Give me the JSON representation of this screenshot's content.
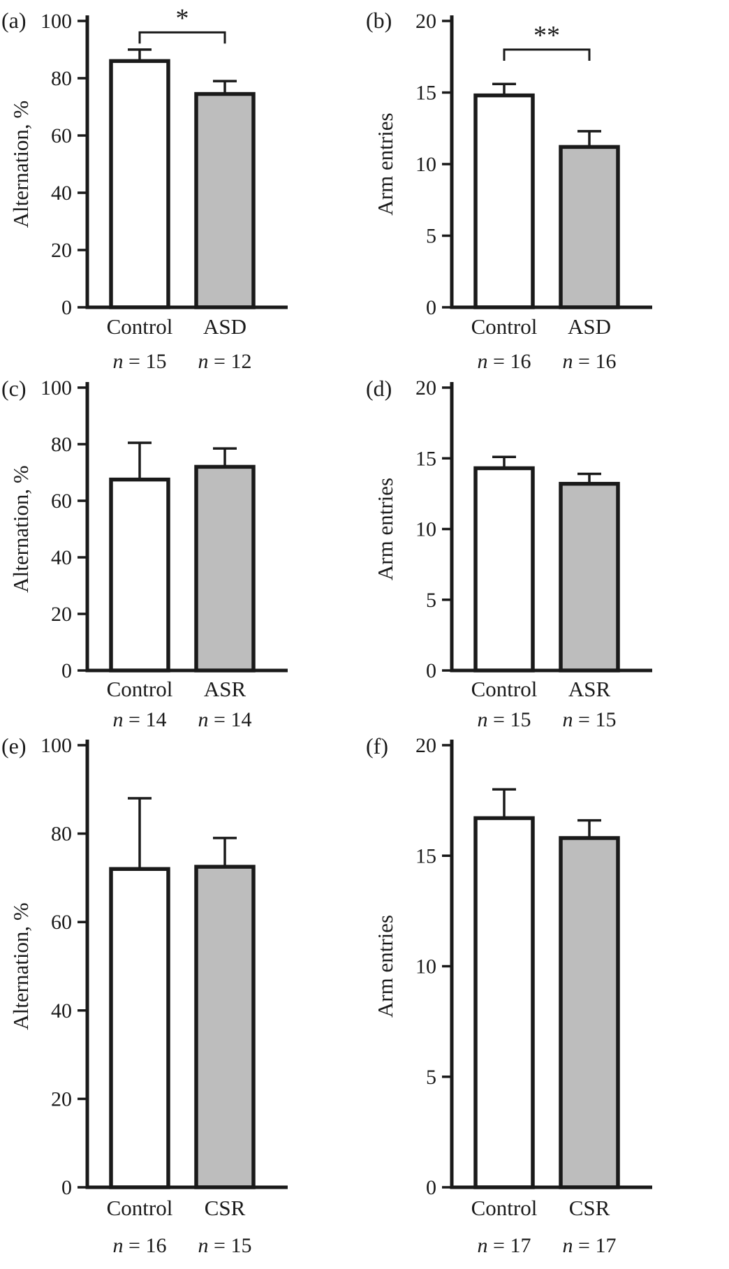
{
  "figure": {
    "background": "#ffffff",
    "axis_color": "#1a1a1a",
    "text_color": "#1a1a1a",
    "control_fill": "#ffffff",
    "treatment_fill": "#bdbdbd"
  },
  "chart_data": [
    {
      "panel": "(a)",
      "type": "bar",
      "ylabel": "Alternation, %",
      "ylim": [
        0,
        100
      ],
      "yticks": [
        0,
        20,
        40,
        60,
        80,
        100
      ],
      "categories": [
        "Control",
        "ASD"
      ],
      "n_labels": [
        "n = 15",
        "n = 12"
      ],
      "values": [
        86,
        74.5
      ],
      "errors": [
        4,
        4.5
      ],
      "significance": {
        "label": "*",
        "level": 96
      }
    },
    {
      "panel": "(b)",
      "type": "bar",
      "ylabel": "Arm entries",
      "ylim": [
        0,
        20
      ],
      "yticks": [
        0,
        5,
        10,
        15,
        20
      ],
      "categories": [
        "Control",
        "ASD"
      ],
      "n_labels": [
        "n = 16",
        "n = 16"
      ],
      "values": [
        14.8,
        11.2
      ],
      "errors": [
        0.8,
        1.1
      ],
      "significance": {
        "label": "**",
        "level": 18
      }
    },
    {
      "panel": "(c)",
      "type": "bar",
      "ylabel": "Alternation, %",
      "ylim": [
        0,
        100
      ],
      "yticks": [
        0,
        20,
        40,
        60,
        80,
        100
      ],
      "categories": [
        "Control",
        "ASR"
      ],
      "n_labels": [
        "n = 14",
        "n = 14"
      ],
      "values": [
        67.5,
        72
      ],
      "errors": [
        13,
        6.5
      ],
      "significance": null
    },
    {
      "panel": "(d)",
      "type": "bar",
      "ylabel": "Arm entries",
      "ylim": [
        0,
        20
      ],
      "yticks": [
        0,
        5,
        10,
        15,
        20
      ],
      "categories": [
        "Control",
        "ASR"
      ],
      "n_labels": [
        "n = 15",
        "n = 15"
      ],
      "values": [
        14.3,
        13.2
      ],
      "errors": [
        0.8,
        0.7
      ],
      "significance": null
    },
    {
      "panel": "(e)",
      "type": "bar",
      "ylabel": "Alternation, %",
      "ylim": [
        0,
        100
      ],
      "yticks": [
        0,
        20,
        40,
        60,
        80,
        100
      ],
      "categories": [
        "Control",
        "CSR"
      ],
      "n_labels": [
        "n = 16",
        "n = 15"
      ],
      "values": [
        72,
        72.5
      ],
      "errors": [
        16,
        6.5
      ],
      "significance": null
    },
    {
      "panel": "(f)",
      "type": "bar",
      "ylabel": "Arm entries",
      "ylim": [
        0,
        20
      ],
      "yticks": [
        0,
        5,
        10,
        15,
        20
      ],
      "categories": [
        "Control",
        "CSR"
      ],
      "n_labels": [
        "n = 17",
        "n = 17"
      ],
      "values": [
        16.7,
        15.8
      ],
      "errors": [
        1.3,
        0.8
      ],
      "significance": null
    }
  ]
}
